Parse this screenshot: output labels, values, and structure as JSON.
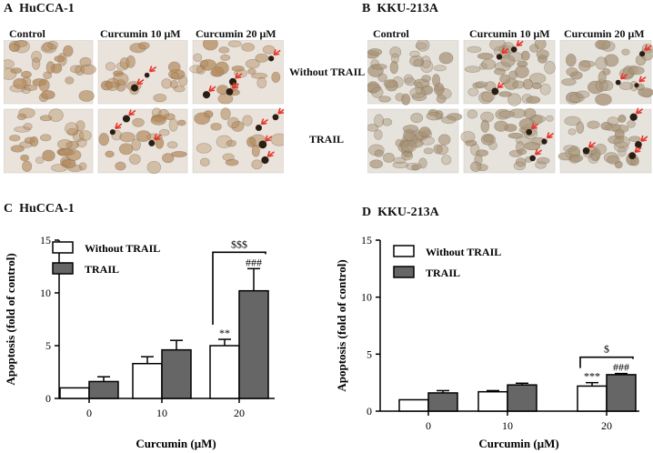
{
  "figure": {
    "panel_A": {
      "letter": "A",
      "cell_line": "HuCCA-1"
    },
    "panel_B": {
      "letter": "B",
      "cell_line": "KKU-213A"
    },
    "panel_C": {
      "letter": "C",
      "cell_line": "HuCCA-1"
    },
    "panel_D": {
      "letter": "D",
      "cell_line": "KKU-213A"
    },
    "columns": [
      "Control",
      "Curcumin 10 μM",
      "Curcumin 20 μM"
    ],
    "rows": [
      "Without TRAIL",
      "TRAIL"
    ],
    "colors": {
      "without_fill": "#ffffff",
      "trail_fill": "#666666",
      "stroke": "#000000",
      "hucca_bg": "#e9e3dc",
      "kku_bg": "#e6e3dd",
      "stain": "#b48a5c",
      "arrow": "#e8362a"
    }
  },
  "chart_data": [
    {
      "type": "bar",
      "panel": "C",
      "title": "HuCCA-1",
      "xlabel": "Curcumin (μM)",
      "ylabel": "Apoptosis (fold of control)",
      "categories": [
        "0",
        "10",
        "20"
      ],
      "ylim": [
        0,
        15
      ],
      "yticks": [
        "0",
        "5",
        "10",
        "15"
      ],
      "legend_position": "top-left",
      "series": [
        {
          "name": "Without TRAIL",
          "values": [
            1.0,
            3.3,
            5.0
          ],
          "errors": [
            0.0,
            0.65,
            0.6
          ],
          "color": "#ffffff"
        },
        {
          "name": "TRAIL",
          "values": [
            1.6,
            4.6,
            10.2
          ],
          "errors": [
            0.45,
            0.9,
            2.1
          ],
          "color": "#666666"
        }
      ],
      "annotations": {
        "without_20": "**",
        "trail_20": "###",
        "bracket_20": "$$$"
      }
    },
    {
      "type": "bar",
      "panel": "D",
      "title": "KKU-213A",
      "xlabel": "Curcumin (μM)",
      "ylabel": "Apoptosis (fold of control)",
      "categories": [
        "0",
        "10",
        "20"
      ],
      "ylim": [
        0,
        15
      ],
      "yticks": [
        "0",
        "5",
        "10",
        "15"
      ],
      "legend_position": "top-left",
      "series": [
        {
          "name": "Without TRAIL",
          "values": [
            1.0,
            1.7,
            2.2
          ],
          "errors": [
            0.0,
            0.1,
            0.3
          ],
          "color": "#ffffff"
        },
        {
          "name": "TRAIL",
          "values": [
            1.6,
            2.3,
            3.2
          ],
          "errors": [
            0.2,
            0.15,
            0.1
          ],
          "color": "#666666"
        }
      ],
      "annotations": {
        "without_20": "***",
        "trail_20": "###",
        "bracket_20": "$"
      }
    }
  ]
}
